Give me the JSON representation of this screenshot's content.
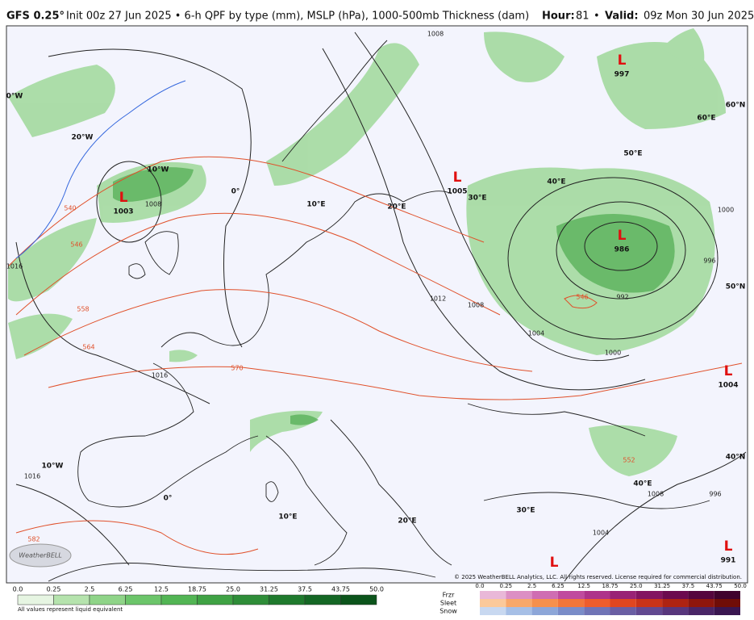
{
  "header": {
    "model": "GFS 0.25°",
    "description": "Init 00z 27 Jun 2025 • 6-h QPF by type (mm), MSLP (hPa), 1000-500mb Thickness (dam)",
    "hour_label": "Hour:",
    "hour": "81",
    "separator": "•",
    "valid_label": "Valid:",
    "valid": "09z Mon 30 Jun 2025"
  },
  "map": {
    "pressure_centers": [
      {
        "symbol": "L",
        "value": "1003"
      },
      {
        "symbol": "L",
        "value": "1005"
      },
      {
        "symbol": "L",
        "value": "997"
      },
      {
        "symbol": "L",
        "value": "986"
      },
      {
        "symbol": "L",
        "value": "1004"
      },
      {
        "symbol": "L",
        "value": "991"
      },
      {
        "symbol": "L"
      }
    ],
    "grid_labels": [
      "0°W",
      "20°W",
      "10°W",
      "0°",
      "10°E",
      "20°E",
      "30°E",
      "40°E",
      "50°E",
      "60°E",
      "60°N",
      "50°N",
      "40°N",
      "40°E",
      "30°E",
      "20°E",
      "10°E",
      "0°",
      "10°W"
    ],
    "isobar_labels": [
      "1008",
      "1016",
      "1004",
      "1000",
      "992",
      "996",
      "1000",
      "1012",
      "1008",
      "1016",
      "1016",
      "1008",
      "996",
      "1004",
      "1008"
    ],
    "thickness_labels": [
      "540",
      "546",
      "558",
      "564",
      "570",
      "582",
      "546",
      "552"
    ]
  },
  "legend": {
    "rain_ticks": [
      "0.0",
      "0.25",
      "2.5",
      "6.25",
      "12.5",
      "18.75",
      "25.0",
      "31.25",
      "37.5",
      "43.75",
      "50.0"
    ],
    "rain_note": "All values represent liquid equivalent",
    "mixed_ticks": [
      "0.0",
      "0.25",
      "2.5",
      "6.25",
      "12.5",
      "18.75",
      "25.0",
      "31.25",
      "37.5",
      "43.75",
      "50.0"
    ],
    "types": [
      "Frzr",
      "Sleet",
      "Snow"
    ],
    "copyright": "© 2025 WeatherBELL Analytics, LLC. All rights reserved. License required for commercial distribution.",
    "logo": "WeatherBELL"
  }
}
